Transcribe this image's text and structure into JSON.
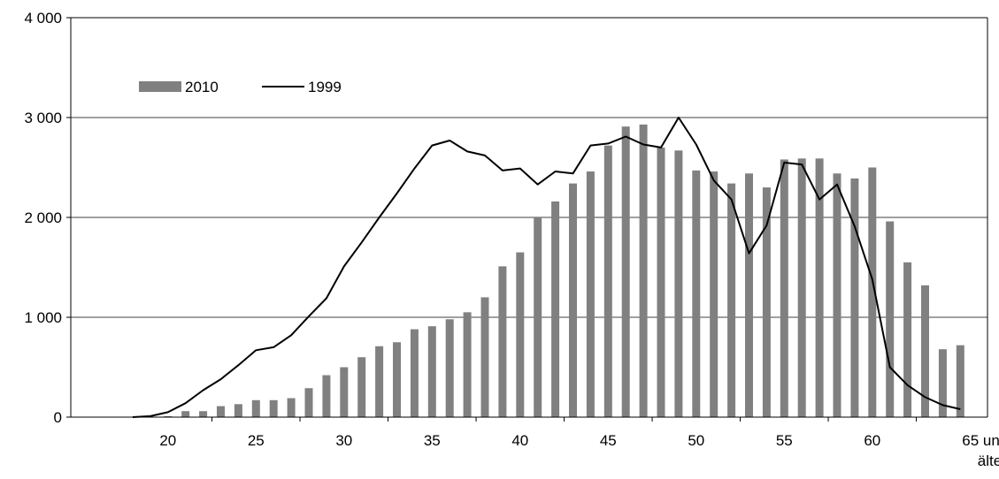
{
  "chart_data": {
    "type": "bar",
    "title": "",
    "xlabel": "",
    "ylabel": "",
    "ylim": [
      0,
      4000
    ],
    "y_ticks": [
      {
        "value": 0,
        "label": "0"
      },
      {
        "value": 1000,
        "label": "1 000"
      },
      {
        "value": 2000,
        "label": "2 000"
      },
      {
        "value": 3000,
        "label": "3 000"
      },
      {
        "value": 4000,
        "label": "4 000"
      }
    ],
    "x_ticks": [
      {
        "age": 20,
        "label": "20"
      },
      {
        "age": 25,
        "label": "25"
      },
      {
        "age": 30,
        "label": "30"
      },
      {
        "age": 35,
        "label": "35"
      },
      {
        "age": 40,
        "label": "40"
      },
      {
        "age": 45,
        "label": "45"
      },
      {
        "age": 50,
        "label": "50"
      },
      {
        "age": 55,
        "label": "55"
      },
      {
        "age": 60,
        "label": "60"
      }
    ],
    "x_last_label": [
      "65 und",
      "älter"
    ],
    "grid": true,
    "legend_position": "top-left",
    "categories": [
      18,
      19,
      20,
      21,
      22,
      23,
      24,
      25,
      26,
      27,
      28,
      29,
      30,
      31,
      32,
      33,
      34,
      35,
      36,
      37,
      38,
      39,
      40,
      41,
      42,
      43,
      44,
      45,
      46,
      47,
      48,
      49,
      50,
      51,
      52,
      53,
      54,
      55,
      56,
      57,
      58,
      59,
      60,
      61,
      62,
      63,
      64,
      65,
      66
    ],
    "series": [
      {
        "name": "2010",
        "type": "bar",
        "color": "#808080",
        "values": [
          0,
          0,
          10,
          60,
          60,
          110,
          130,
          170,
          170,
          190,
          290,
          420,
          500,
          600,
          710,
          750,
          880,
          910,
          980,
          1050,
          1200,
          1510,
          1650,
          2000,
          2160,
          2340,
          2460,
          2720,
          2910,
          2930,
          2700,
          2670,
          2470,
          2460,
          2340,
          2440,
          2300,
          2580,
          2590,
          2590,
          2440,
          2390,
          2500,
          1960,
          1550,
          1320,
          680,
          720,
          null
        ]
      },
      {
        "name": "1999",
        "type": "line",
        "color": "#000000",
        "values": [
          0,
          10,
          50,
          140,
          270,
          380,
          520,
          670,
          700,
          820,
          1010,
          1190,
          1510,
          1750,
          2000,
          2240,
          2490,
          2720,
          2770,
          2660,
          2620,
          2470,
          2490,
          2330,
          2460,
          2440,
          2720,
          2740,
          2810,
          2730,
          2700,
          3000,
          2730,
          2370,
          2180,
          1640,
          1920,
          2550,
          2530,
          2180,
          2330,
          1910,
          1380,
          500,
          320,
          200,
          120,
          80,
          null
        ]
      }
    ]
  }
}
